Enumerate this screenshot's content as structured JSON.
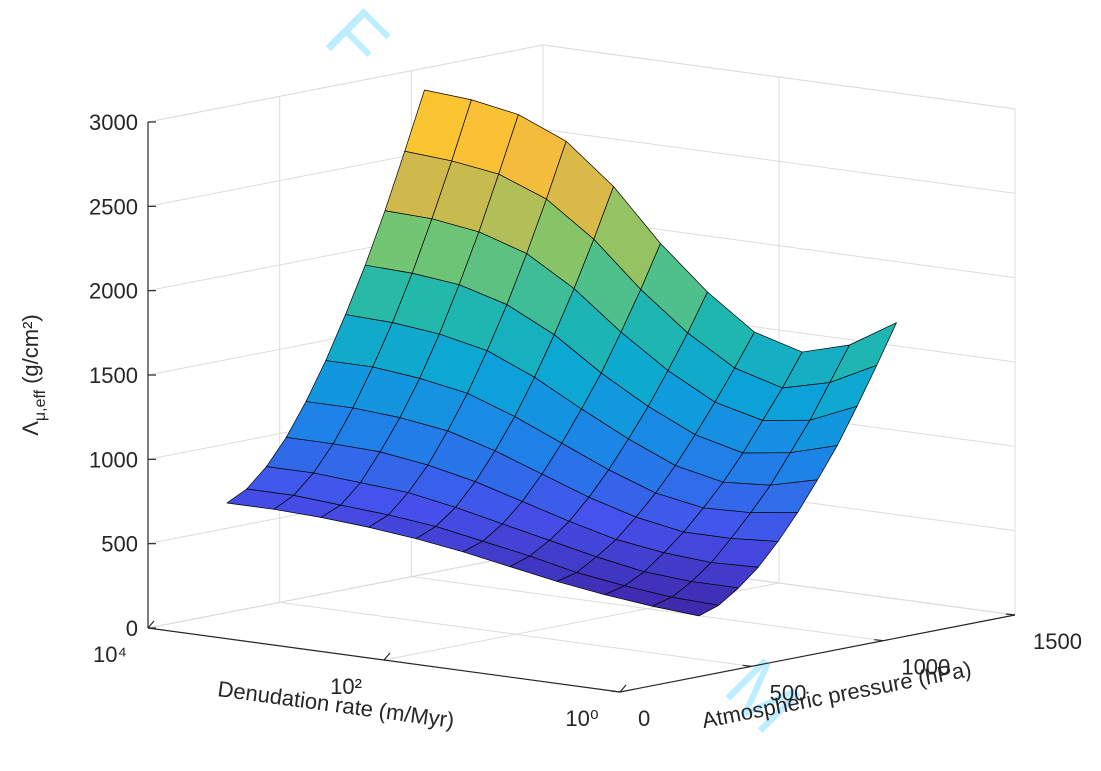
{
  "chart_data": {
    "type": "surface",
    "watermark": [
      "F",
      "M"
    ],
    "xlabel": "Denudation rate (m/Myr)",
    "ylabel": "Atmospheric pressure (hPa)",
    "zlabel": {
      "symbol": "Λ",
      "subscript": "μ,eff",
      "unit": "(g/cm²)"
    },
    "xscale": "log",
    "xlim": [
      1,
      10000
    ],
    "xticks": [
      {
        "value": 1,
        "label": "10⁰"
      },
      {
        "value": 100,
        "label": "10²"
      },
      {
        "value": 10000,
        "label": "10⁴"
      }
    ],
    "ylim": [
      0,
      1500
    ],
    "yticks": [
      0,
      500,
      1000,
      1500
    ],
    "zlim": [
      0,
      3000
    ],
    "zticks": [
      0,
      500,
      1000,
      1500,
      2000,
      2500,
      3000
    ],
    "grid": true,
    "colormap": "parula",
    "x": [
      1,
      2.5,
      6.3,
      16,
      40,
      100,
      250,
      630,
      1600,
      4000,
      10000
    ],
    "y": [
      300,
      375,
      450,
      525,
      600,
      675,
      750,
      825,
      900,
      975,
      1050
    ],
    "z": [
      [
        360,
        380,
        410,
        450,
        500,
        550,
        590,
        620,
        640,
        650,
        650
      ],
      [
        400,
        410,
        440,
        480,
        540,
        590,
        640,
        670,
        690,
        710,
        710
      ],
      [
        480,
        480,
        500,
        550,
        610,
        670,
        730,
        780,
        800,
        820,
        820
      ],
      [
        580,
        570,
        590,
        630,
        700,
        780,
        860,
        920,
        960,
        970,
        970
      ],
      [
        710,
        690,
        690,
        740,
        820,
        920,
        1020,
        1100,
        1140,
        1160,
        1160
      ],
      [
        860,
        820,
        810,
        860,
        960,
        1080,
        1200,
        1300,
        1350,
        1380,
        1380
      ],
      [
        1030,
        960,
        940,
        1000,
        1120,
        1260,
        1410,
        1530,
        1590,
        1620,
        1630
      ],
      [
        1210,
        1130,
        1090,
        1160,
        1290,
        1450,
        1640,
        1780,
        1860,
        1890,
        1900
      ],
      [
        1420,
        1300,
        1260,
        1330,
        1480,
        1670,
        1890,
        2060,
        2150,
        2190,
        2200
      ],
      [
        1640,
        1500,
        1430,
        1510,
        1680,
        1900,
        2160,
        2360,
        2470,
        2510,
        2530
      ],
      [
        1870,
        1700,
        1620,
        1700,
        1900,
        2150,
        2450,
        2680,
        2800,
        2850,
        2870
      ]
    ]
  }
}
